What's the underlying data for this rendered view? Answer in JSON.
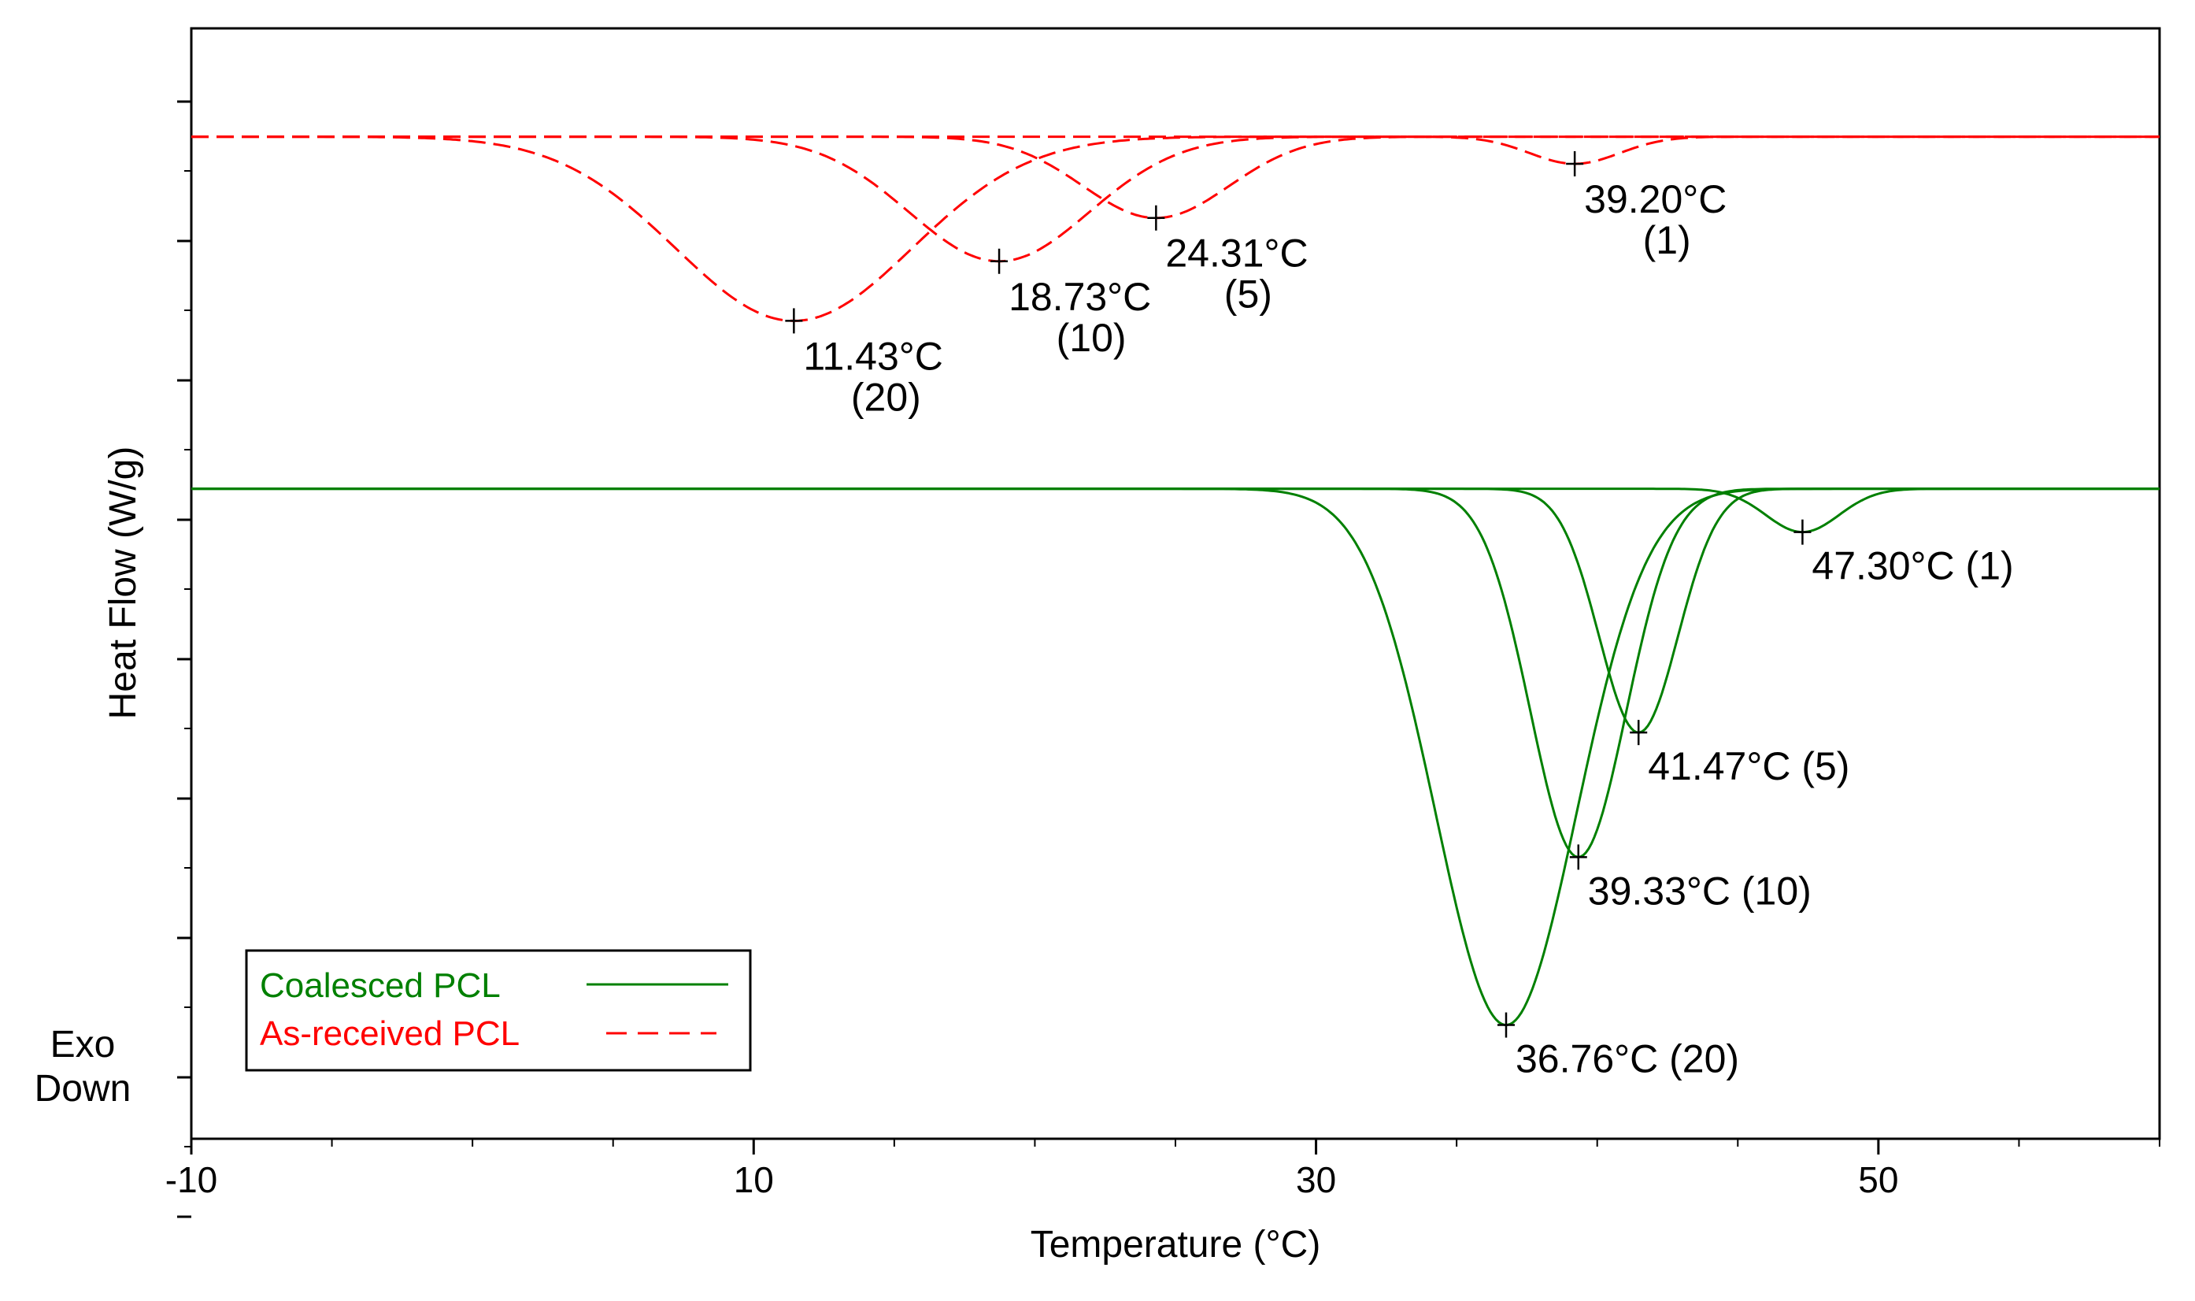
{
  "chart_data": {
    "type": "line",
    "title": "",
    "xlabel": "Temperature (°C)",
    "ylabel": "Heat Flow (W/g)",
    "exo_label": [
      "Exo",
      "Down"
    ],
    "xlim": [
      -10,
      60
    ],
    "x_ticks": [
      -10,
      10,
      30,
      50
    ],
    "x_tick_labels": [
      "-10",
      "10",
      "30",
      "50"
    ],
    "ylim": [
      -4.0,
      0.1
    ],
    "y_tick_labels": [],
    "grid": false,
    "legend_position": "bottom-left",
    "legend": [
      {
        "label": "Coalesced PCL",
        "color": "#008000",
        "style": "solid"
      },
      {
        "label": "As-received PCL",
        "color": "#ff0000",
        "style": "dashed"
      }
    ],
    "series": [
      {
        "name": "As-received PCL (1)",
        "group": "as-received",
        "color": "#ff0000",
        "style": "dashed",
        "baseline": -0.3,
        "peak_x": 39.2,
        "depth": 0.1,
        "width": 1.6,
        "peak_label": [
          "39.20°C",
          "(1)"
        ]
      },
      {
        "name": "As-received PCL (5)",
        "group": "as-received",
        "color": "#ff0000",
        "style": "dashed",
        "baseline": -0.3,
        "peak_x": 24.31,
        "depth": 0.3,
        "width": 2.6,
        "peak_label": [
          "24.31°C",
          "(5)"
        ]
      },
      {
        "name": "As-received PCL (10)",
        "group": "as-received",
        "color": "#ff0000",
        "style": "dashed",
        "baseline": -0.3,
        "peak_x": 18.73,
        "depth": 0.46,
        "width": 3.2,
        "peak_label": [
          "18.73°C",
          "(10)"
        ]
      },
      {
        "name": "As-received PCL (20)",
        "group": "as-received",
        "color": "#ff0000",
        "style": "dashed",
        "baseline": -0.3,
        "peak_x": 11.43,
        "depth": 0.68,
        "width": 4.2,
        "peak_label": [
          "11.43°C",
          "(20)"
        ]
      },
      {
        "name": "Coalesced PCL (1)",
        "group": "coalesced",
        "color": "#008000",
        "style": "solid",
        "baseline": -1.6,
        "peak_x": 47.3,
        "depth": 0.16,
        "width": 1.3,
        "peak_label": [
          "47.30°C (1)"
        ]
      },
      {
        "name": "Coalesced PCL (5)",
        "group": "coalesced",
        "color": "#008000",
        "style": "solid",
        "baseline": -1.6,
        "peak_x": 41.47,
        "depth": 0.9,
        "width": 1.4,
        "peak_label": [
          "41.47°C (5)"
        ]
      },
      {
        "name": "Coalesced PCL (10)",
        "group": "coalesced",
        "color": "#008000",
        "style": "solid",
        "baseline": -1.6,
        "peak_x": 39.33,
        "depth": 1.36,
        "width": 1.7,
        "peak_label": [
          "39.33°C (10)"
        ]
      },
      {
        "name": "Coalesced PCL (20)",
        "group": "coalesced",
        "color": "#008000",
        "style": "solid",
        "baseline": -1.6,
        "peak_x": 36.76,
        "depth": 1.98,
        "width": 2.5,
        "peak_label": [
          "36.76°C (20)"
        ]
      }
    ]
  }
}
